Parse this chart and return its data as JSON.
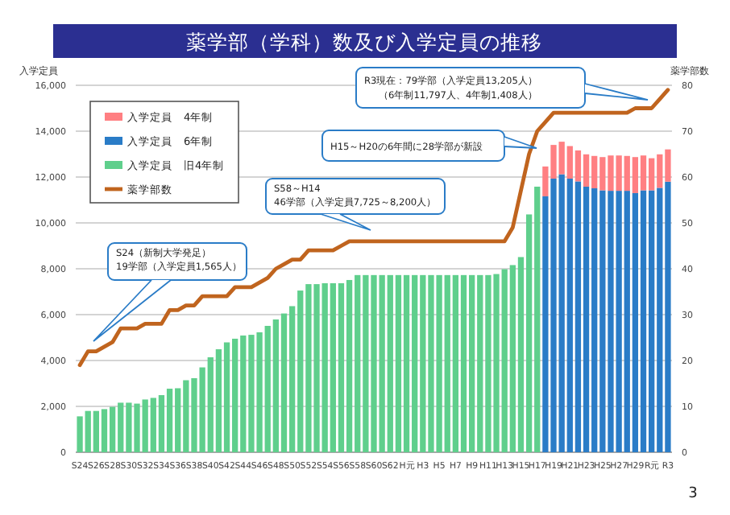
{
  "chart_data": {
    "type": "bar",
    "title": "薬学部（学科）数及び入学定員の推移",
    "ylabel": "入学定員",
    "y2label": "薬学部数",
    "categories": [
      "S24",
      null,
      "S26",
      null,
      "S28",
      null,
      "S30",
      null,
      "S32",
      null,
      "S34",
      null,
      "S36",
      null,
      "S38",
      null,
      "S40",
      null,
      "S42",
      null,
      "S44",
      null,
      "S46",
      null,
      "S48",
      null,
      "S50",
      null,
      "S52",
      null,
      "S54",
      null,
      "S56",
      null,
      "S58",
      null,
      "S60",
      null,
      "S62",
      null,
      "H元",
      null,
      "H3",
      null,
      "H5",
      null,
      "H7",
      null,
      "H9",
      null,
      "H11",
      null,
      "H13",
      null,
      "H15",
      null,
      "H17",
      null,
      "H19",
      null,
      "H21",
      null,
      "H23",
      null,
      "H25",
      null,
      "H27",
      null,
      "H29",
      null,
      "R元",
      null,
      "R3"
    ],
    "stacked": true,
    "series": [
      {
        "name": "入学定員　旧4年制",
        "color": "#5fcf8c",
        "values": [
          1565,
          1800,
          1800,
          1880,
          1980,
          2160,
          2160,
          2120,
          2300,
          2370,
          2490,
          2770,
          2790,
          3140,
          3230,
          3700,
          4140,
          4490,
          4790,
          4950,
          5090,
          5120,
          5230,
          5510,
          5790,
          6050,
          6370,
          7050,
          7330,
          7330,
          7370,
          7370,
          7370,
          7510,
          7725,
          7725,
          7725,
          7725,
          7725,
          7725,
          7725,
          7725,
          7725,
          7725,
          7725,
          7725,
          7725,
          7725,
          7725,
          7725,
          7725,
          7770,
          7980,
          8160,
          8510,
          10370,
          11580,
          null,
          null,
          null,
          null,
          null,
          null,
          null,
          null,
          null,
          null,
          null,
          null,
          null,
          null,
          null,
          null
        ]
      },
      {
        "name": "入学定員　6年制",
        "color": "#2a7cc7",
        "values": [
          null,
          null,
          null,
          null,
          null,
          null,
          null,
          null,
          null,
          null,
          null,
          null,
          null,
          null,
          null,
          null,
          null,
          null,
          null,
          null,
          null,
          null,
          null,
          null,
          null,
          null,
          null,
          null,
          null,
          null,
          null,
          null,
          null,
          null,
          null,
          null,
          null,
          null,
          null,
          null,
          null,
          null,
          null,
          null,
          null,
          null,
          null,
          null,
          null,
          null,
          null,
          null,
          null,
          null,
          null,
          null,
          null,
          11160,
          11930,
          12120,
          11930,
          11810,
          11580,
          11510,
          11420,
          11400,
          11400,
          11400,
          11300,
          11420,
          11420,
          11530,
          11797
        ]
      },
      {
        "name": "入学定員　4年制",
        "color": "#ff7f82",
        "values": [
          null,
          null,
          null,
          null,
          null,
          null,
          null,
          null,
          null,
          null,
          null,
          null,
          null,
          null,
          null,
          null,
          null,
          null,
          null,
          null,
          null,
          null,
          null,
          null,
          null,
          null,
          null,
          null,
          null,
          null,
          null,
          null,
          null,
          null,
          null,
          null,
          null,
          null,
          null,
          null,
          null,
          null,
          null,
          null,
          null,
          null,
          null,
          null,
          null,
          null,
          null,
          null,
          null,
          null,
          null,
          null,
          null,
          1300,
          1470,
          1420,
          1420,
          1350,
          1410,
          1410,
          1450,
          1540,
          1540,
          1520,
          1570,
          1520,
          1400,
          1460,
          1408
        ]
      },
      {
        "name": "薬学部数",
        "type": "line",
        "axis": "y2",
        "color": "#c0641e",
        "values": [
          19,
          22,
          22,
          23,
          24,
          27,
          27,
          27,
          28,
          28,
          28,
          31,
          31,
          32,
          32,
          34,
          34,
          34,
          34,
          36,
          36,
          36,
          37,
          38,
          40,
          41,
          42,
          42,
          44,
          44,
          44,
          44,
          45,
          46,
          46,
          46,
          46,
          46,
          46,
          46,
          46,
          46,
          46,
          46,
          46,
          46,
          46,
          46,
          46,
          46,
          46,
          46,
          46,
          49,
          57,
          65,
          70,
          72,
          74,
          74,
          74,
          74,
          74,
          74,
          74,
          74,
          74,
          74,
          75,
          75,
          75,
          77,
          79
        ]
      }
    ],
    "ylim": [
      0,
      16000
    ],
    "yticks": [
      0,
      {
        "value": 2000,
        "label": "2,000"
      },
      {
        "value": 4000,
        "label": "4,000"
      },
      {
        "value": 6000,
        "label": "6,000"
      },
      {
        "value": 8000,
        "label": "8,000"
      },
      {
        "value": 10000,
        "label": "10,000"
      },
      {
        "value": 12000,
        "label": "12,000"
      },
      {
        "value": 14000,
        "label": "14,000"
      },
      {
        "value": 16000,
        "label": "16,000"
      }
    ],
    "y2lim": [
      0,
      80
    ],
    "y2ticks": [
      0,
      10,
      20,
      30,
      40,
      50,
      60,
      70,
      80
    ],
    "grid": "y",
    "legend": "top left",
    "annotations": [
      "R3現在：79学部（入学定員13,205人）",
      "（6年制11,797人、4年制1,408人）",
      "H15～H20の6年間に28学部が新設",
      "S58～H14",
      "46学部（入学定員7,725～8,200人）",
      "S24（新制大学発足）",
      "19学部（入学定員1,565人）",
      "3"
    ]
  }
}
